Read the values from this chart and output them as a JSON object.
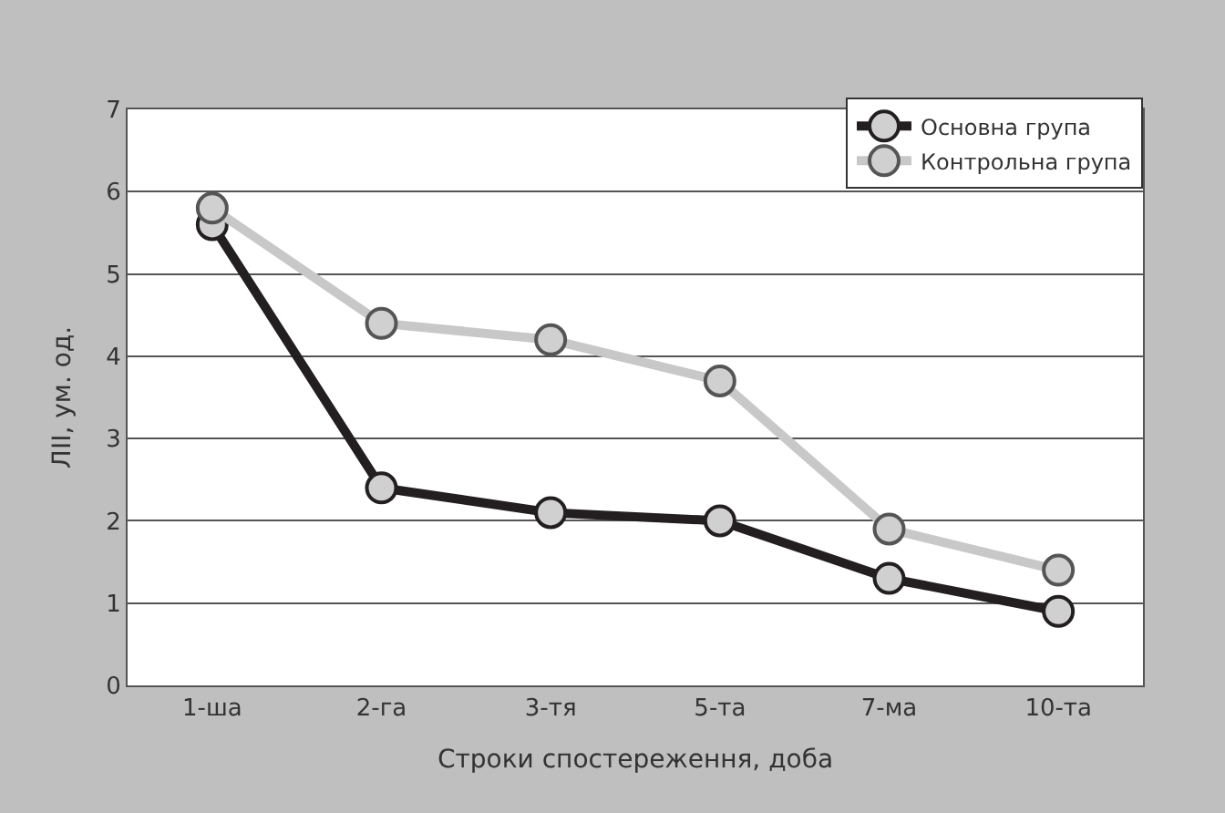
{
  "chart_data": {
    "type": "line",
    "xlabel": "Строки спостереження, доба",
    "ylabel": "ЛІІ, ум. од.",
    "categories": [
      "1-ша",
      "2-га",
      "3-тя",
      "5-та",
      "7-ма",
      "10-та"
    ],
    "series": [
      {
        "name": "Основна група",
        "color": "#231f20",
        "values": [
          5.6,
          2.4,
          2.1,
          2.0,
          1.3,
          0.9
        ]
      },
      {
        "name": "Контрольна група",
        "color": "#c8c8c8",
        "values": [
          5.8,
          4.4,
          4.2,
          3.7,
          1.9,
          1.4
        ]
      }
    ],
    "ylim": [
      0,
      7
    ],
    "yticks": [
      0,
      1,
      2,
      3,
      4,
      5,
      6,
      7
    ],
    "grid": "y",
    "legend": "top right",
    "marker": "circle",
    "line_style": "solid"
  }
}
